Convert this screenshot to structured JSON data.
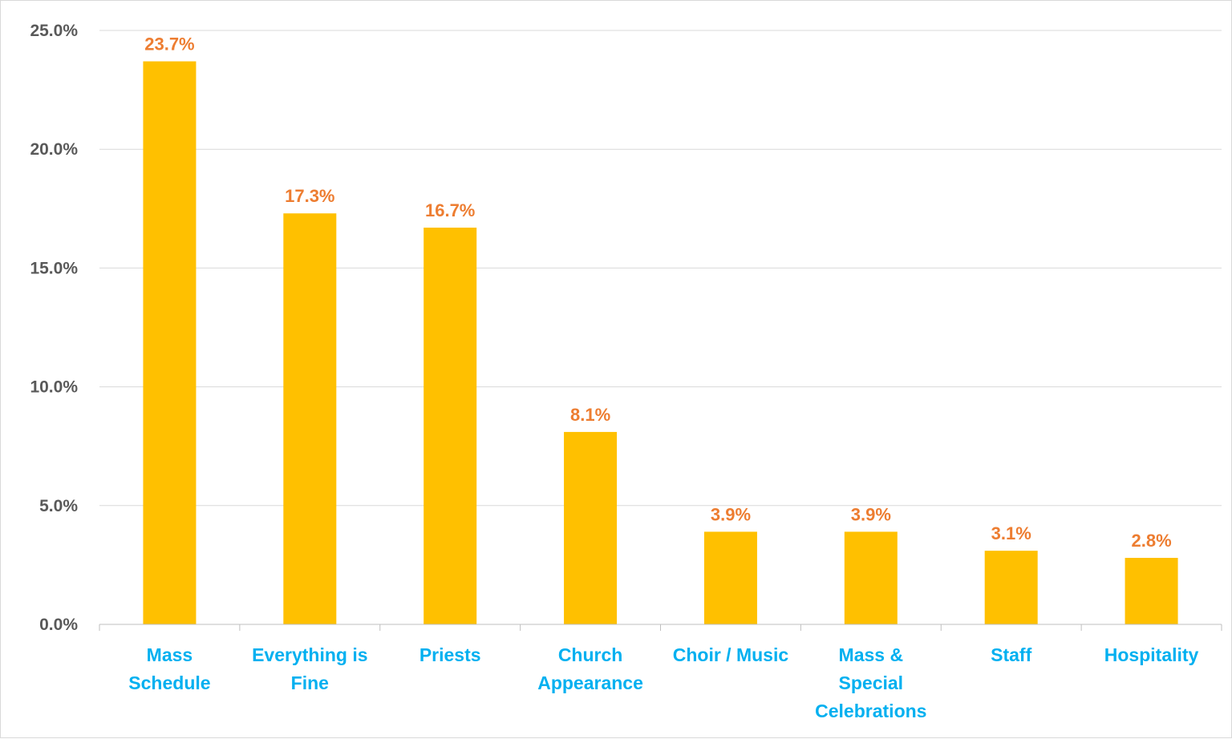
{
  "chart_data": {
    "type": "bar",
    "title": "",
    "xlabel": "",
    "ylabel": "",
    "categories": [
      "Mass Schedule",
      "Everything is Fine",
      "Priests",
      "Church Appearance",
      "Choir / Music",
      "Mass & Special Celebrations",
      "Staff",
      "Hospitality"
    ],
    "category_lines": [
      [
        "Mass",
        "Schedule"
      ],
      [
        "Everything is",
        "Fine"
      ],
      [
        "Priests"
      ],
      [
        "Church",
        "Appearance"
      ],
      [
        "Choir / Music"
      ],
      [
        "Mass &",
        "Special",
        "Celebrations"
      ],
      [
        "Staff"
      ],
      [
        "Hospitality"
      ]
    ],
    "values": [
      23.7,
      17.3,
      16.7,
      8.1,
      3.9,
      3.9,
      3.1,
      2.8
    ],
    "data_labels": [
      "23.7%",
      "17.3%",
      "16.7%",
      "8.1%",
      "3.9%",
      "3.9%",
      "3.1%",
      "2.8%"
    ],
    "ylim": [
      0,
      25
    ],
    "y_ticks": [
      0,
      5,
      10,
      15,
      20,
      25
    ],
    "y_tick_labels": [
      "0.0%",
      "5.0%",
      "10.0%",
      "15.0%",
      "20.0%",
      "25.0%"
    ],
    "grid": true,
    "legend": "none",
    "colors": {
      "bar": "#FFC000",
      "data_label": "#ED7D31",
      "category_label": "#00B0F0",
      "tick_label": "#595959",
      "gridline": "#d9d9d9",
      "axis": "#bfbfbf"
    }
  }
}
